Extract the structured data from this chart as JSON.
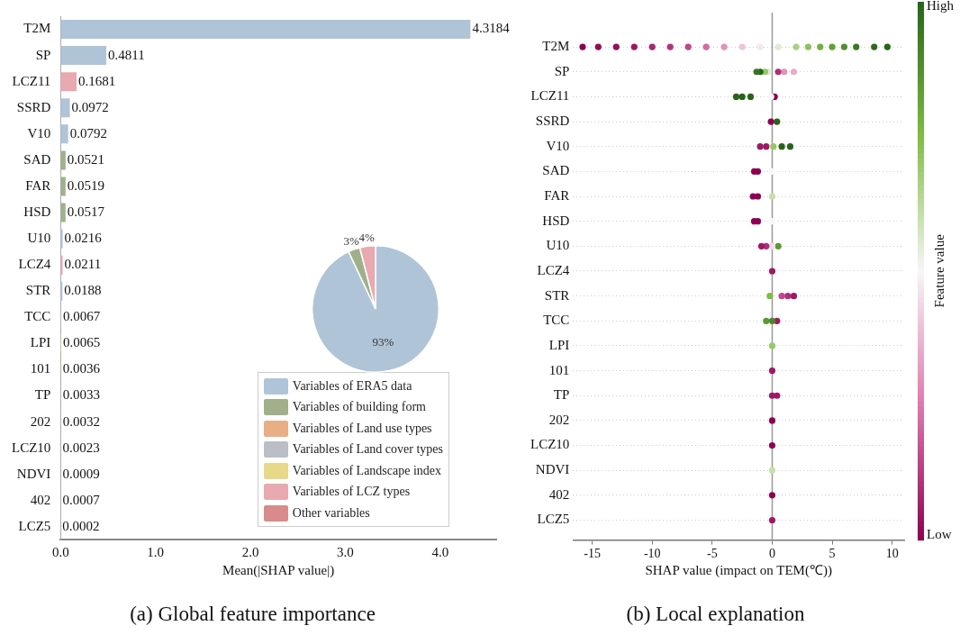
{
  "chart_data": [
    {
      "type": "bar",
      "orientation": "horizontal",
      "stacked": true,
      "title": "(a) Global feature importance",
      "xlabel": "Mean(|SHAP value|)",
      "categories": [
        "T2M",
        "SP",
        "LCZ11",
        "SSRD",
        "V10",
        "SAD",
        "FAR",
        "HSD",
        "U10",
        "LCZ4",
        "STR",
        "TCC",
        "LPI",
        "101",
        "TP",
        "202",
        "LCZ10",
        "NDVI",
        "402",
        "LCZ5"
      ],
      "series": [
        {
          "name": "Variables of ERA5 data",
          "color": "#b0c4d8",
          "values": [
            4.3184,
            0.4811,
            null,
            0.0972,
            0.0792,
            null,
            null,
            null,
            0.0216,
            null,
            0.0188,
            0.0067,
            null,
            null,
            0.0033,
            null,
            null,
            null,
            null,
            null
          ]
        },
        {
          "name": "Variables of building form",
          "color": "#9fb08a",
          "values": [
            null,
            null,
            null,
            null,
            null,
            0.0521,
            0.0519,
            0.0517,
            null,
            null,
            null,
            null,
            null,
            null,
            null,
            null,
            null,
            null,
            null,
            null
          ]
        },
        {
          "name": "Variables of Land use types",
          "color": "#e8ae84",
          "values": [
            null,
            null,
            null,
            null,
            null,
            null,
            null,
            null,
            null,
            null,
            null,
            null,
            null,
            0.0036,
            null,
            null,
            null,
            null,
            0.0007,
            null
          ]
        },
        {
          "name": "Variables of Land cover types",
          "color": "#bcbec6",
          "values": [
            null,
            null,
            null,
            null,
            null,
            null,
            null,
            null,
            null,
            null,
            null,
            null,
            null,
            null,
            null,
            0.0032,
            null,
            null,
            null,
            null
          ]
        },
        {
          "name": "Variables of Landscape index",
          "color": "#e8d88a",
          "values": [
            null,
            null,
            null,
            null,
            null,
            null,
            null,
            null,
            null,
            null,
            null,
            null,
            0.0065,
            null,
            null,
            null,
            null,
            null,
            null,
            null
          ]
        },
        {
          "name": "Variables of LCZ types",
          "color": "#e8a9b0",
          "values": [
            null,
            null,
            0.1681,
            null,
            null,
            null,
            null,
            null,
            null,
            0.0211,
            null,
            null,
            null,
            null,
            null,
            null,
            0.0023,
            null,
            null,
            0.0002
          ]
        },
        {
          "name": "Other variables",
          "color": "#d98a8a",
          "values": [
            null,
            null,
            null,
            null,
            null,
            null,
            null,
            null,
            null,
            null,
            null,
            null,
            null,
            null,
            null,
            null,
            null,
            0.0009,
            null,
            null
          ]
        }
      ],
      "xlim": [
        0,
        4.59
      ],
      "xticks": [
        {
          "value": 0,
          "label": "0.0"
        },
        {
          "value": 1,
          "label": "1.0"
        },
        {
          "value": 2,
          "label": "2.0"
        },
        {
          "value": 3,
          "label": "3.0"
        },
        {
          "value": 4,
          "label": "4.0"
        }
      ],
      "data_labels": true,
      "legend": "bottom right"
    },
    {
      "type": "pie",
      "categories": [
        null,
        null,
        null
      ],
      "values": [
        93,
        3,
        4
      ],
      "colors": [
        "#b0c4d8",
        "#9fb08a",
        "#e8a9b0"
      ],
      "value_labels": [
        "93%",
        "3%",
        "4%"
      ]
    },
    {
      "type": "scatter",
      "orientation": "horizontal",
      "title": "(b) Local explanation",
      "xlabel": "SHAP value (impact on TEM(℃))",
      "clabel": "Feature value",
      "marker": "circle",
      "grid": "y",
      "categories": [
        "T2M",
        "SP",
        "LCZ11",
        "SSRD",
        "V10",
        "SAD",
        "FAR",
        "HSD",
        "U10",
        "LCZ4",
        "STR",
        "TCC",
        "LPI",
        "101",
        "TP",
        "202",
        "LCZ10",
        "NDVI",
        "402",
        "LCZ5"
      ],
      "series": [
        {
          "values": [
            -15.8,
            -1.3,
            -3,
            -0.1,
            -1,
            -1.5,
            -1.6,
            -1.5,
            -0.9,
            0,
            -0.2,
            -0.5,
            0,
            0,
            0,
            0,
            0,
            0,
            0,
            0
          ],
          "colors": [
            "#8e0152",
            "#397621",
            "#276419",
            "#8e0152",
            "#9e1964",
            "#8e0152",
            "#8e0152",
            "#8e0152",
            "#9e1964",
            "#9e1964",
            "#7fbc41",
            "#5c9931",
            "#97c865",
            "#9e1964",
            "#9e1964",
            "#8e0152",
            "#8e0152",
            "#c7dfae",
            "#8e0152",
            "#9e1964"
          ]
        },
        {
          "values": [
            -14.5,
            -1,
            -2.5,
            0.4,
            -0.5,
            -1.2,
            -1.2,
            -1.2,
            -0.5,
            null,
            0.8,
            0,
            null,
            null,
            0.4,
            null,
            null,
            null,
            null,
            null
          ],
          "colors": [
            "#940a59",
            "#276419",
            "#276419",
            "#276419",
            "#9e1964",
            "#8e0152",
            "#8e0152",
            "#8e0152",
            "#ae3077",
            null,
            "#be4889",
            "#4a8729",
            null,
            null,
            "#9e1964",
            null,
            null,
            null,
            null,
            null
          ]
        },
        {
          "values": [
            -13,
            -0.6,
            -1.8,
            null,
            0.1,
            0,
            0,
            0,
            0,
            null,
            1.3,
            0.4,
            null,
            null,
            null,
            null,
            null,
            null,
            null,
            null
          ],
          "colors": [
            "#980f5d",
            "#97c865",
            "#276419",
            null,
            "#97c865",
            "#f7f7f7",
            "#c7dfae",
            "#f7f7f7",
            "#f2dde8",
            null,
            "#ae3077",
            "#9e1964",
            null,
            null,
            null,
            null,
            null,
            null,
            null,
            null
          ]
        },
        {
          "values": [
            -11.5,
            -0.3,
            -0.1,
            null,
            0.8,
            null,
            null,
            null,
            0.5,
            null,
            1.8,
            null,
            null,
            null,
            null,
            null,
            null,
            null,
            null,
            null
          ],
          "colors": [
            "#9e1964",
            "#dfebd3",
            "#f7f7f7",
            null,
            "#276419",
            null,
            null,
            null,
            "#5c9931",
            null,
            "#9e1964",
            null,
            null,
            null,
            null,
            null,
            null,
            null,
            null,
            null
          ]
        },
        {
          "values": [
            -10,
            0.5,
            0.2,
            null,
            1.5,
            null,
            null,
            null,
            null,
            null,
            null,
            null,
            null,
            null,
            null,
            null,
            null,
            null,
            null,
            null
          ],
          "colors": [
            "#a8276f",
            "#ae3077",
            "#8e0152",
            null,
            "#276419",
            null,
            null,
            null,
            null,
            null,
            null,
            null,
            null,
            null,
            null,
            null,
            null,
            null,
            null,
            null
          ]
        },
        {
          "values": [
            -8.5,
            1,
            null,
            null,
            null,
            null,
            null,
            null,
            null,
            null,
            null,
            null,
            null,
            null,
            null,
            null,
            null,
            null,
            null,
            null
          ],
          "colors": [
            "#b1357b",
            "#e391bd",
            null,
            null,
            null,
            null,
            null,
            null,
            null,
            null,
            null,
            null,
            null,
            null,
            null,
            null,
            null,
            null,
            null,
            null
          ]
        },
        {
          "values": [
            -7,
            1.8,
            null,
            null,
            null,
            null,
            null,
            null,
            null,
            null,
            null,
            null,
            null,
            null,
            null,
            null,
            null,
            null,
            null,
            null
          ],
          "colors": [
            "#be4889",
            "#e8aacb",
            null,
            null,
            null,
            null,
            null,
            null,
            null,
            null,
            null,
            null,
            null,
            null,
            null,
            null,
            null,
            null,
            null,
            null
          ]
        },
        {
          "values": [
            -5.5,
            null,
            null,
            null,
            null,
            null,
            null,
            null,
            null,
            null,
            null,
            null,
            null,
            null,
            null,
            null,
            null,
            null,
            null,
            null
          ],
          "color": "#d469a3"
        },
        {
          "values": [
            -4,
            null,
            null,
            null,
            null,
            null,
            null,
            null,
            null,
            null,
            null,
            null,
            null,
            null,
            null,
            null,
            null,
            null,
            null,
            null
          ],
          "color": "#e391bd"
        },
        {
          "values": [
            -2.5,
            null,
            null,
            null,
            null,
            null,
            null,
            null,
            null,
            null,
            null,
            null,
            null,
            null,
            null,
            null,
            null,
            null,
            null,
            null
          ],
          "color": "#edc4da"
        },
        {
          "values": [
            -1,
            null,
            null,
            null,
            null,
            null,
            null,
            null,
            null,
            null,
            null,
            null,
            null,
            null,
            null,
            null,
            null,
            null,
            null,
            null
          ],
          "color": "#f4e8ee"
        },
        {
          "values": [
            0.5,
            null,
            null,
            null,
            null,
            null,
            null,
            null,
            null,
            null,
            null,
            null,
            null,
            null,
            null,
            null,
            null,
            null,
            null,
            null
          ],
          "color": "#dfebd3"
        },
        {
          "values": [
            2,
            null,
            null,
            null,
            null,
            null,
            null,
            null,
            null,
            null,
            null,
            null,
            null,
            null,
            null,
            null,
            null,
            null,
            null,
            null
          ],
          "color": "#aad183"
        },
        {
          "values": [
            3,
            null,
            null,
            null,
            null,
            null,
            null,
            null,
            null,
            null,
            null,
            null,
            null,
            null,
            null,
            null,
            null,
            null,
            null,
            null
          ],
          "color": "#8dc357"
        },
        {
          "values": [
            4,
            null,
            null,
            null,
            null,
            null,
            null,
            null,
            null,
            null,
            null,
            null,
            null,
            null,
            null,
            null,
            null,
            null,
            null,
            null
          ],
          "color": "#74b13c"
        },
        {
          "values": [
            5,
            null,
            null,
            null,
            null,
            null,
            null,
            null,
            null,
            null,
            null,
            null,
            null,
            null,
            null,
            null,
            null,
            null,
            null,
            null
          ],
          "color": "#63a034"
        },
        {
          "values": [
            6,
            null,
            null,
            null,
            null,
            null,
            null,
            null,
            null,
            null,
            null,
            null,
            null,
            null,
            null,
            null,
            null,
            null,
            null,
            null
          ],
          "color": "#518e2c"
        },
        {
          "values": [
            7,
            null,
            null,
            null,
            null,
            null,
            null,
            null,
            null,
            null,
            null,
            null,
            null,
            null,
            null,
            null,
            null,
            null,
            null,
            null
          ],
          "color": "#3c7923"
        },
        {
          "values": [
            8.5,
            null,
            null,
            null,
            null,
            null,
            null,
            null,
            null,
            null,
            null,
            null,
            null,
            null,
            null,
            null,
            null,
            null,
            null,
            null
          ],
          "color": "#2e6b1c"
        },
        {
          "values": [
            9.6,
            null,
            null,
            null,
            null,
            null,
            null,
            null,
            null,
            null,
            null,
            null,
            null,
            null,
            null,
            null,
            null,
            null,
            null,
            null
          ],
          "color": "#276419"
        }
      ],
      "xlim": [
        -16.6,
        11
      ],
      "xticks": [
        -15,
        -10,
        -5,
        0,
        5,
        10
      ],
      "ref_lines": [
        {
          "axis": "x",
          "value": 0,
          "color": "#999999"
        }
      ],
      "clim": [
        0,
        1
      ],
      "cticks": [
        {
          "value": 0,
          "label": "Low"
        },
        {
          "value": 1,
          "label": "High"
        }
      ]
    }
  ]
}
